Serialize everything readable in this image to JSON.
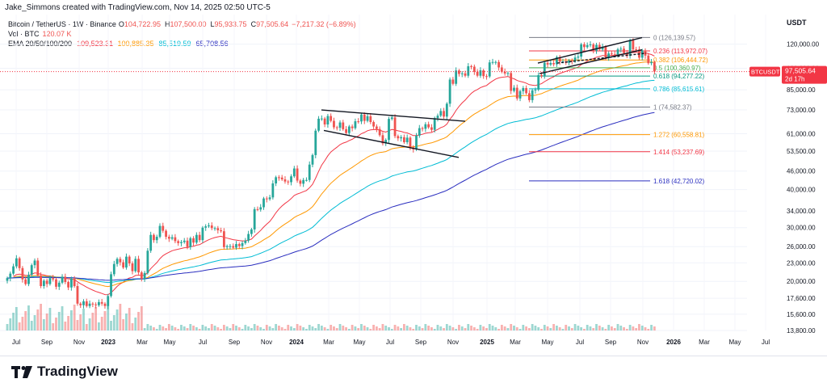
{
  "attribution": "Jake_Simmons created with TradingView.com, Nov 14, 2025 02:50 UTC-5",
  "footer": {
    "brand": "TradingView"
  },
  "legend": {
    "title": "Bitcoin / TetherUS · 1W · Binance",
    "ohlc": [
      {
        "k": "O",
        "v": "104,722.95"
      },
      {
        "k": "H",
        "v": "107,500.00"
      },
      {
        "k": "L",
        "v": "95,933.75"
      },
      {
        "k": "C",
        "v": "97,505.64"
      }
    ],
    "change": "−7,217.32 (−6.89%)",
    "vol_label": "Vol · BTC",
    "vol_value": "120.07 K",
    "ema_label": "EMA 20/50/100/200",
    "ema_values": [
      "109,523.31",
      "100,885.35",
      "85,519.59",
      "65,708.56"
    ]
  },
  "colors": {
    "up": "#26a69a",
    "down": "#ef5350",
    "ema20": "#f23645",
    "ema50": "#ff9800",
    "ema100": "#00bcd4",
    "ema200": "#2a2ebf",
    "fib0": "#787b86",
    "fib0236": "#f23645",
    "fib0382": "#ff9800",
    "fib05": "#4caf50",
    "fib0618": "#089981",
    "fib0786": "#00bcd4",
    "fib1": "#787b86",
    "fib1272": "#ff9800",
    "fib1414": "#f23645",
    "fib1618": "#2a2ebf",
    "trendline": "#131722",
    "price_tag": "#f23645"
  },
  "chart_data": {
    "type": "candlestick",
    "symbol": "BTCUSDT",
    "interval": "1W",
    "currency": "USDT",
    "y_scale": "log",
    "ylim": [
      13800,
      150000
    ],
    "x_ticks": [
      "Jul",
      "Sep",
      "Nov",
      "2023",
      "Mar",
      "May",
      "Jul",
      "Sep",
      "Nov",
      "2024",
      "Mar",
      "May",
      "Jul",
      "Sep",
      "Nov",
      "2025",
      "Mar",
      "May",
      "Jul",
      "Sep",
      "Nov",
      "2026",
      "Mar",
      "May",
      "Jul"
    ],
    "y_ticks": [
      "120,000.00",
      "100,000.00",
      "85,000.00",
      "73,000.00",
      "61,000.00",
      "53,500.00",
      "46,000.00",
      "40,000.00",
      "34,000.00",
      "30,000.00",
      "26,000.00",
      "23,000.00",
      "20,000.00",
      "17,600.00",
      "15,600.00",
      "13,800.00"
    ],
    "y_tick_values": [
      120000,
      100000,
      85000,
      73000,
      61000,
      53500,
      46000,
      40000,
      34000,
      30000,
      26000,
      23000,
      20000,
      17600,
      15600,
      13800
    ],
    "last_price": {
      "label": "BTCUSDT",
      "value": "97,505.64",
      "countdown": "2d 17h",
      "numeric": 97505.64
    },
    "candles_closes": [
      20500,
      21200,
      22400,
      23800,
      22100,
      20300,
      19600,
      21000,
      22600,
      23400,
      20900,
      19300,
      20100,
      19600,
      20500,
      20300,
      19200,
      19800,
      20700,
      19900,
      19100,
      20400,
      19300,
      16900,
      16700,
      17200,
      16600,
      16900,
      16800,
      16700,
      17100,
      16900,
      16600,
      17900,
      21100,
      22800,
      23700,
      23100,
      22200,
      24100,
      22900,
      21600,
      23700,
      21400,
      20400,
      21300,
      25200,
      28400,
      27300,
      28000,
      30400,
      29300,
      28000,
      27600,
      27900,
      27100,
      26700,
      26900,
      27200,
      25900,
      27700,
      26800,
      28400,
      27300,
      30000,
      30300,
      30500,
      29900,
      29900,
      29400,
      29200,
      25900,
      26100,
      26100,
      25800,
      26500,
      26100,
      26700,
      27200,
      28600,
      29600,
      34500,
      34400,
      35000,
      37400,
      37200,
      37700,
      41900,
      43900,
      43800,
      43200,
      42500,
      42300,
      44200,
      46900,
      42800,
      41800,
      43000,
      43000,
      48300,
      51900,
      62400,
      68300,
      68400,
      65400,
      69700,
      67200,
      64000,
      63800,
      66400,
      63100,
      61300,
      64400,
      63600,
      67000,
      66900,
      70500,
      67200,
      69600,
      66600,
      64400,
      63200,
      60300,
      56700,
      58200,
      68200,
      69000,
      59900,
      58900,
      59400,
      57200,
      59200,
      55000,
      54200,
      60100,
      63600,
      63300,
      65500,
      64000,
      62800,
      68600,
      69900,
      72400,
      69400,
      76500,
      91800,
      88900,
      98300,
      95800,
      96200,
      94500,
      101500,
      101200,
      97400,
      94500,
      98400,
      94200,
      94000,
      104500,
      104800,
      104800,
      100600,
      97400,
      96100,
      96400,
      84300,
      86300,
      79600,
      84100,
      86100,
      82800,
      78600,
      84600,
      85100,
      94900,
      94300,
      104200,
      102800,
      104000,
      103000,
      108800,
      105000,
      105300,
      104200,
      106000,
      105400,
      108400,
      109200,
      119800,
      117300,
      119100,
      119700,
      114200,
      119300,
      115300,
      117600,
      108400,
      111800,
      111100,
      110700,
      115300,
      115900,
      112100,
      109700,
      123500,
      115300,
      115200,
      108300,
      114400,
      110000,
      103900,
      104700,
      97500
    ]
  },
  "fib": {
    "levels": [
      {
        "ratio": "0",
        "price": "126,139.57",
        "numeric": 126139.57,
        "color_key": "fib0"
      },
      {
        "ratio": "0.236",
        "price": "113,972.07",
        "numeric": 113972.07,
        "color_key": "fib0236"
      },
      {
        "ratio": "0.382",
        "price": "106,444.72",
        "numeric": 106444.72,
        "color_key": "fib0382"
      },
      {
        "ratio": "0.5",
        "price": "100,360.97",
        "numeric": 100360.97,
        "color_key": "fib05"
      },
      {
        "ratio": "0.618",
        "price": "94,277.22",
        "numeric": 94277.22,
        "color_key": "fib0618"
      },
      {
        "ratio": "0.786",
        "price": "85,615.61",
        "numeric": 85615.61,
        "color_key": "fib0786"
      },
      {
        "ratio": "1",
        "price": "74,582.37",
        "numeric": 74582.37,
        "color_key": "fib1"
      },
      {
        "ratio": "1.272",
        "price": "60,558.81",
        "numeric": 60558.81,
        "color_key": "fib1272"
      },
      {
        "ratio": "1.414",
        "price": "53,237.69",
        "numeric": 53237.69,
        "color_key": "fib1414"
      },
      {
        "ratio": "1.618",
        "price": "42,720.02",
        "numeric": 42720.02,
        "color_key": "fib1618"
      }
    ]
  }
}
